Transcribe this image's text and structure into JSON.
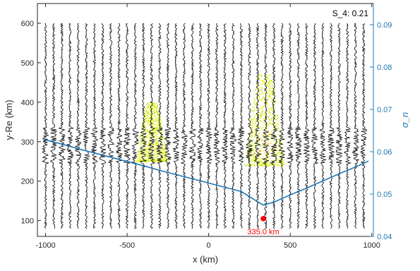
{
  "chart_data": {
    "type": "scatter",
    "xlabel": "x (km)",
    "ylabel_left": "y-Re (km)",
    "ylabel_right": "σ_n",
    "xlim": [
      -1050,
      1010
    ],
    "ylim_left": [
      60,
      650
    ],
    "ylim_right": [
      0.04,
      0.095
    ],
    "xticks": [
      -1000,
      -500,
      0,
      500,
      1000
    ],
    "yticks_left": [
      100,
      200,
      300,
      400,
      500,
      600
    ],
    "yticks_right": [
      0.04,
      0.05,
      0.06,
      0.07,
      0.08,
      0.09
    ],
    "xtick_labels": [
      "-1000",
      "-500",
      "0",
      "500",
      "1000"
    ],
    "ytick_labels_left": [
      "100",
      "200",
      "300",
      "400",
      "500",
      "600"
    ],
    "ytick_labels_right": [
      "0.04",
      "0.05",
      "0.06",
      "0.07",
      "0.08",
      "0.09"
    ],
    "grid": false,
    "annotation_top_right": "S_4: 0.21",
    "traces": {
      "x_start": -1000,
      "x_step": 50,
      "count": 40,
      "y_bottom": 80,
      "y_top": 600,
      "band_center": 290,
      "band_halfwidth": 45,
      "color": "#000000"
    },
    "scatter_clouds": [
      {
        "x_center": -350,
        "x_halfwidth": 95,
        "y_bottom": 250,
        "y_top": 400,
        "colors": [
          "#e6f200",
          "#a8e000",
          "#ffff40"
        ]
      },
      {
        "x_center": 340,
        "x_halfwidth": 120,
        "y_bottom": 240,
        "y_top": 470,
        "colors": [
          "#e6f200",
          "#a8e000",
          "#ffff40",
          "#ff3b00"
        ]
      }
    ],
    "series": [
      {
        "axis": "right",
        "color": "#1f77b4",
        "x": [
          -1000,
          -900,
          -800,
          -700,
          -600,
          -500,
          -400,
          -300,
          -200,
          -100,
          0,
          100,
          200,
          300,
          335,
          400,
          500,
          600,
          700,
          800,
          900,
          980
        ],
        "values": [
          0.0628,
          0.0618,
          0.0607,
          0.0597,
          0.0587,
          0.0577,
          0.0567,
          0.0556,
          0.0546,
          0.0536,
          0.0526,
          0.0516,
          0.0506,
          0.0482,
          0.0474,
          0.0481,
          0.0498,
          0.0514,
          0.0531,
          0.0548,
          0.0564,
          0.0578
        ]
      }
    ],
    "marker": {
      "x": 335,
      "y_left": 105,
      "color": "#ff0000"
    },
    "marker_label": "335.0 km"
  }
}
